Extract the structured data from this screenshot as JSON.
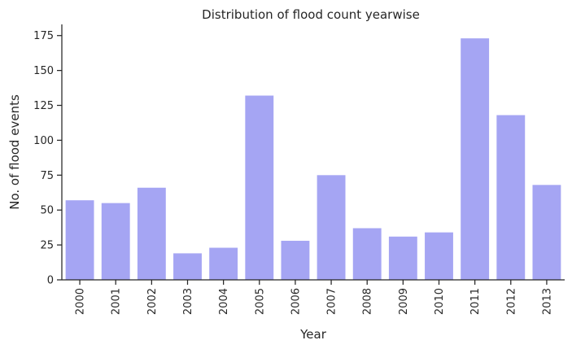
{
  "chart_data": {
    "type": "bar",
    "title": "Distribution of flood count yearwise",
    "xlabel": "Year",
    "ylabel": "No. of flood events",
    "categories": [
      "2000",
      "2001",
      "2002",
      "2003",
      "2004",
      "2005",
      "2006",
      "2007",
      "2008",
      "2009",
      "2010",
      "2011",
      "2012",
      "2013"
    ],
    "values": [
      57,
      55,
      66,
      19,
      23,
      132,
      28,
      75,
      37,
      31,
      34,
      173,
      118,
      68
    ],
    "ylim": [
      0,
      183
    ],
    "yticks": [
      0,
      25,
      50,
      75,
      100,
      125,
      150,
      175
    ],
    "bar_color": "#a5a5f3",
    "grid": false,
    "legend": "none"
  }
}
